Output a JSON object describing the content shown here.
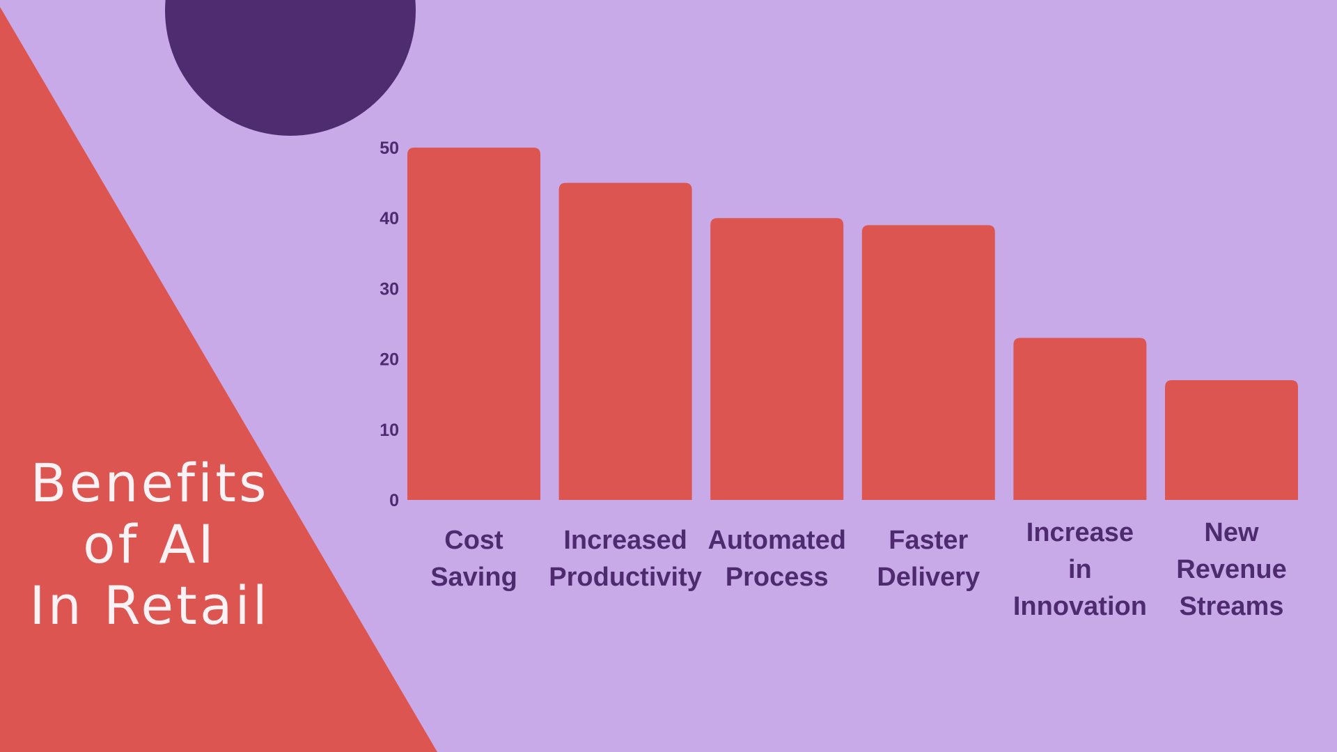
{
  "title_lines": [
    "Benefits",
    "of AI",
    "In Retail"
  ],
  "colors": {
    "background": "#c9aae9",
    "triangle": "#dd5550",
    "circle": "#4f2c6f",
    "bar": "#dd5550",
    "axis_text": "#4d2b6e",
    "title_text": "#fbf2f5"
  },
  "chart_data": {
    "type": "bar",
    "title": "Benefits of AI In Retail",
    "categories": [
      [
        "Cost",
        "Saving"
      ],
      [
        "Increased",
        "Productivity"
      ],
      [
        "Automated",
        "Process"
      ],
      [
        "Faster",
        "Delivery"
      ],
      [
        "Increase",
        "in",
        "Innovation"
      ],
      [
        "New",
        "Revenue",
        "Streams"
      ]
    ],
    "values": [
      50,
      45,
      40,
      39,
      23,
      17
    ],
    "y_ticks": [
      0,
      10,
      20,
      30,
      40,
      50
    ],
    "ylim": [
      0,
      50
    ],
    "xlabel": "",
    "ylabel": "",
    "grid": false,
    "legend": "none"
  }
}
